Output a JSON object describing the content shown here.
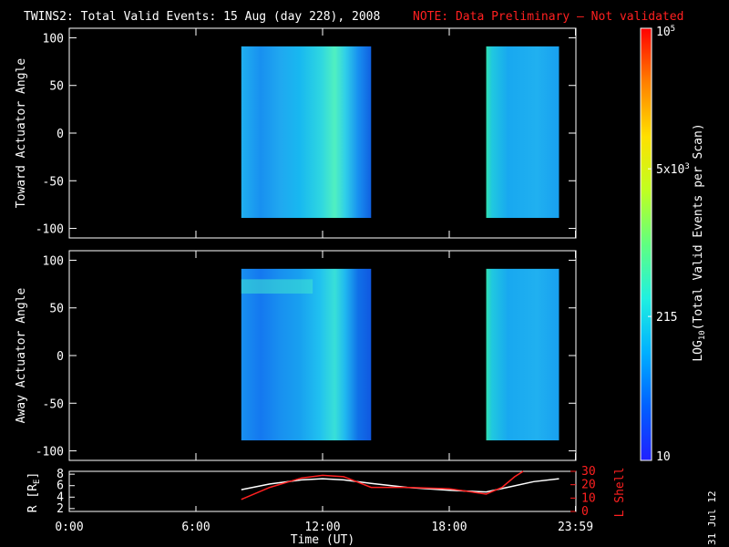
{
  "header": {
    "title": "TWINS2: Total Valid Events: 15 Aug (day 228), 2008",
    "note": "NOTE: Data Preliminary — Not validated",
    "note_color": "#ff2020"
  },
  "footer": {
    "date_stamp": "31 Jul 12"
  },
  "chart_data": [
    {
      "type": "heatmap",
      "name": "toward-panel",
      "ylabel": "Toward Actuator Angle",
      "ylim": [
        -110,
        110
      ],
      "yticks": [
        100,
        50,
        0,
        -50,
        -100
      ],
      "xlim": [
        0,
        24
      ],
      "data_blocks": [
        {
          "x_start": 8.15,
          "x_end": 14.3,
          "y_start": -89,
          "y_end": 91
        },
        {
          "x_start": 19.75,
          "x_end": 23.2,
          "y_start": -89,
          "y_end": 91
        }
      ]
    },
    {
      "type": "heatmap",
      "name": "away-panel",
      "ylabel": "Away Actuator Angle",
      "ylim": [
        -110,
        110
      ],
      "yticks": [
        100,
        50,
        0,
        -50,
        -100
      ],
      "xlim": [
        0,
        24
      ],
      "data_blocks": [
        {
          "x_start": 8.15,
          "x_end": 14.3,
          "y_start": -89,
          "y_end": 91
        },
        {
          "x_start": 19.75,
          "x_end": 23.2,
          "y_start": -89,
          "y_end": 91
        }
      ]
    },
    {
      "type": "line",
      "name": "orbit-panel",
      "xlabel": "Time (UT)",
      "xticks": [
        {
          "value": 0,
          "label": "0:00"
        },
        {
          "value": 6,
          "label": "6:00"
        },
        {
          "value": 12,
          "label": "12:00"
        },
        {
          "value": 18,
          "label": "18:00"
        },
        {
          "value": 23.98,
          "label": "23:59"
        }
      ],
      "ylabel": "R [R",
      "ylabel_sub": "E",
      "ylabel_end": "]",
      "ylim": [
        1.5,
        8.5
      ],
      "yticks": [
        2,
        4,
        6,
        8
      ],
      "y2label": "L Shell",
      "y2lim": [
        0,
        30
      ],
      "y2ticks": [
        0,
        10,
        20,
        30
      ],
      "series": [
        {
          "axis": "left",
          "color": "#ffffff",
          "x": [
            8.15,
            9.5,
            11,
            12,
            13,
            14.3,
            16,
            18,
            19.75,
            21,
            22,
            23.2
          ],
          "y": [
            5.3,
            6.3,
            7.0,
            7.2,
            7.0,
            6.4,
            5.7,
            5.2,
            4.9,
            5.9,
            6.7,
            7.2
          ]
        },
        {
          "axis": "right",
          "color": "#ff2020",
          "x": [
            8.15,
            9.5,
            11,
            12,
            13,
            14.3,
            16,
            18,
            19.75,
            20.5,
            21.1,
            21.5
          ],
          "y": [
            9,
            18,
            25,
            27,
            26,
            18,
            18,
            17,
            13,
            18,
            26,
            30
          ]
        }
      ]
    }
  ],
  "colorbar": {
    "label": "LOG",
    "label_sub": "10",
    "label_rest": "(Total Valid  Events per Scan)",
    "scale": "log",
    "range": [
      10,
      100000
    ],
    "ticks": [
      {
        "value": 10,
        "label": "10"
      },
      {
        "value": 215,
        "label": "215"
      },
      {
        "value": 5000,
        "label": "5x10",
        "sup": "3"
      },
      {
        "value": 100000,
        "label": "10",
        "sup": "5"
      }
    ],
    "colors": [
      "#2020ff",
      "#0060ff",
      "#00b0ff",
      "#20f0e0",
      "#60ff80",
      "#c0ff20",
      "#ffe000",
      "#ff8000",
      "#ff0000"
    ]
  }
}
